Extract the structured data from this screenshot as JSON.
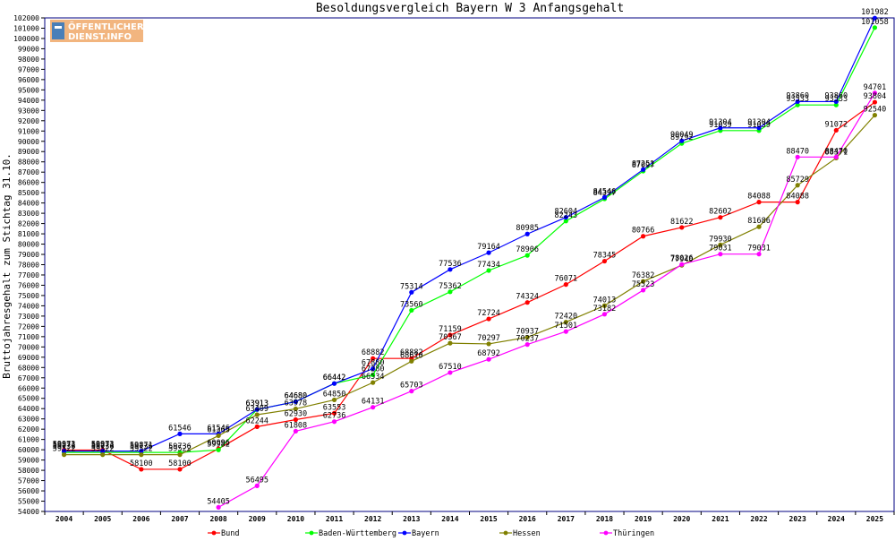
{
  "logo": {
    "line1": "ÖFFENTLICHER",
    "line2": "DIENST.INFO"
  },
  "chart_data": {
    "type": "line",
    "title": "Besoldungsvergleich Bayern W 3 Anfangsgehalt",
    "xlabel": "",
    "ylabel": "Bruttojahresgehalt zum Stichtag 31.10.",
    "x": [
      "2004",
      "2005",
      "2006",
      "2007",
      "2008",
      "2009",
      "2010",
      "2011",
      "2012",
      "2013",
      "2014",
      "2015",
      "2016",
      "2017",
      "2018",
      "2019",
      "2020",
      "2021",
      "2022",
      "2023",
      "2024",
      "2025"
    ],
    "ylim": [
      54000,
      102000
    ],
    "ytick_step": 1000,
    "grid": false,
    "legend_position": "bottom",
    "series": [
      {
        "name": "Bund",
        "color": "#ff0000",
        "values": [
          59973,
          59973,
          58100,
          58100,
          60096,
          62244,
          62930,
          63553,
          68882,
          68882,
          71159,
          72724,
          74324,
          76071,
          78345,
          80766,
          81622,
          82602,
          84088,
          84088,
          91072,
          93804
        ]
      },
      {
        "name": "Baden-Württemberg",
        "color": "#00ff00",
        "values": [
          59736,
          59736,
          59736,
          59736,
          59982,
          63913,
          64680,
          66442,
          67280,
          73560,
          75362,
          77434,
          78906,
          82243,
          84397,
          87097,
          89792,
          91039,
          91039,
          93533,
          93533,
          101058
        ]
      },
      {
        "name": "Bayern",
        "color": "#0000ff",
        "values": [
          59871,
          59871,
          59871,
          61546,
          61546,
          63913,
          64680,
          66442,
          67880,
          75314,
          77536,
          79164,
          80985,
          82604,
          84546,
          87251,
          90049,
          91304,
          91304,
          93860,
          93860,
          101982
        ]
      },
      {
        "name": "Hessen",
        "color": "#808000",
        "values": [
          59522,
          59522,
          59522,
          59522,
          61365,
          63409,
          63978,
          64850,
          66534,
          68610,
          70367,
          70297,
          70937,
          72420,
          74013,
          76382,
          77940,
          79930,
          81686,
          85729,
          88371,
          92540
        ]
      },
      {
        "name": "Thüringen",
        "color": "#ff00ff",
        "values": [
          null,
          null,
          null,
          null,
          54405,
          56495,
          61808,
          62736,
          64131,
          65703,
          67510,
          68792,
          70237,
          71501,
          73182,
          75523,
          78026,
          79031,
          79031,
          88470,
          88470,
          94701
        ]
      }
    ]
  }
}
